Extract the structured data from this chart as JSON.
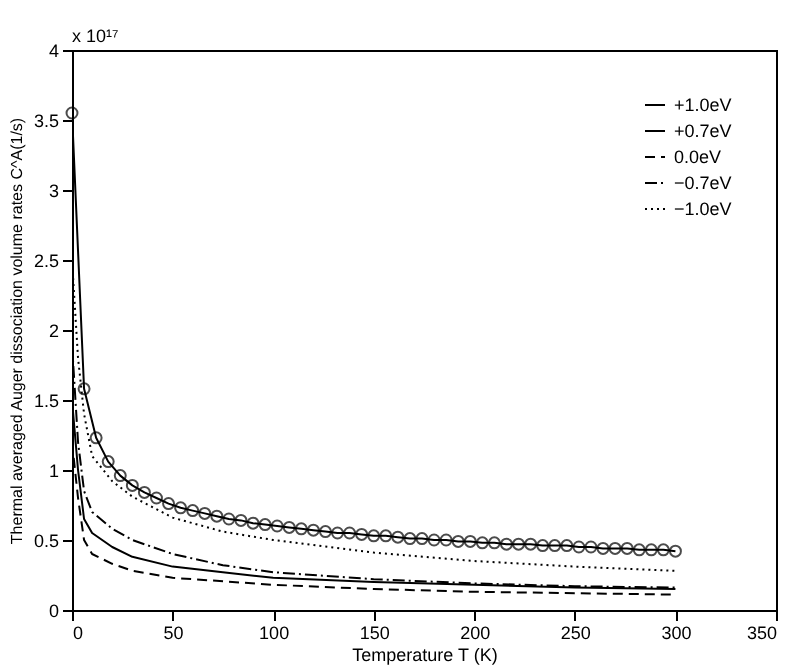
{
  "chart_data": {
    "type": "line",
    "xlabel": "Temperature T (K)",
    "ylabel": "Thermal averaged Auger dissociation volume rates C^A(1/s)",
    "annotations": [
      "x 10¹⁷"
    ],
    "xlim": [
      0,
      350
    ],
    "xticks": [
      0,
      50,
      100,
      150,
      200,
      250,
      300,
      350
    ],
    "ylim": [
      0,
      4
    ],
    "yticks": [
      0,
      0.5,
      1,
      1.5,
      2,
      2.5,
      3,
      3.5,
      4
    ],
    "grid": false,
    "legend": "top right",
    "series": [
      {
        "name": "+1.0eV",
        "color": "#000000",
        "line_style": "solid",
        "marker": "circle",
        "x": [
          0,
          6,
          12,
          18,
          24,
          30,
          36,
          42,
          48,
          54,
          60,
          66,
          72,
          78,
          84,
          90,
          96,
          102,
          108,
          114,
          120,
          126,
          132,
          138,
          144,
          150,
          156,
          162,
          168,
          174,
          180,
          186,
          192,
          198,
          204,
          210,
          216,
          222,
          228,
          234,
          240,
          246,
          252,
          258,
          264,
          270,
          276,
          282,
          288,
          294,
          300
        ],
        "values": [
          3.55,
          1.58,
          1.23,
          1.06,
          0.96,
          0.89,
          0.84,
          0.8,
          0.76,
          0.73,
          0.71,
          0.69,
          0.67,
          0.65,
          0.64,
          0.62,
          0.61,
          0.6,
          0.59,
          0.58,
          0.57,
          0.56,
          0.55,
          0.55,
          0.54,
          0.53,
          0.53,
          0.52,
          0.51,
          0.51,
          0.5,
          0.5,
          0.49,
          0.49,
          0.48,
          0.48,
          0.47,
          0.47,
          0.47,
          0.46,
          0.46,
          0.46,
          0.45,
          0.45,
          0.44,
          0.44,
          0.44,
          0.43,
          0.43,
          0.43,
          0.42
        ]
      },
      {
        "name": "+0.7eV",
        "color": "#000000",
        "line_style": "solid",
        "x": [
          0,
          3,
          6,
          10,
          20,
          30,
          50,
          75,
          100,
          150,
          200,
          250,
          300
        ],
        "values": [
          1.5,
          1.0,
          0.65,
          0.55,
          0.45,
          0.38,
          0.31,
          0.27,
          0.23,
          0.2,
          0.18,
          0.16,
          0.15
        ]
      },
      {
        "name": "0.0eV",
        "color": "#000000",
        "line_style": "dashed",
        "x": [
          0,
          3,
          6,
          10,
          20,
          30,
          50,
          100,
          150,
          200,
          250,
          300
        ],
        "values": [
          1.2,
          0.8,
          0.5,
          0.4,
          0.33,
          0.28,
          0.23,
          0.18,
          0.15,
          0.13,
          0.12,
          0.11
        ]
      },
      {
        "name": "−0.7eV",
        "color": "#000000",
        "line_style": "dashdot",
        "x": [
          0,
          3,
          6,
          10,
          20,
          30,
          50,
          75,
          100,
          150,
          200,
          250,
          300
        ],
        "values": [
          1.9,
          1.2,
          0.85,
          0.7,
          0.58,
          0.5,
          0.4,
          0.32,
          0.27,
          0.22,
          0.19,
          0.17,
          0.16
        ]
      },
      {
        "name": "−1.0eV",
        "color": "#000000",
        "line_style": "dotted",
        "x": [
          0,
          3,
          6,
          10,
          20,
          30,
          50,
          75,
          100,
          150,
          200,
          250,
          300
        ],
        "values": [
          2.5,
          1.8,
          1.4,
          1.1,
          0.92,
          0.81,
          0.66,
          0.56,
          0.5,
          0.41,
          0.35,
          0.31,
          0.28
        ]
      }
    ]
  }
}
